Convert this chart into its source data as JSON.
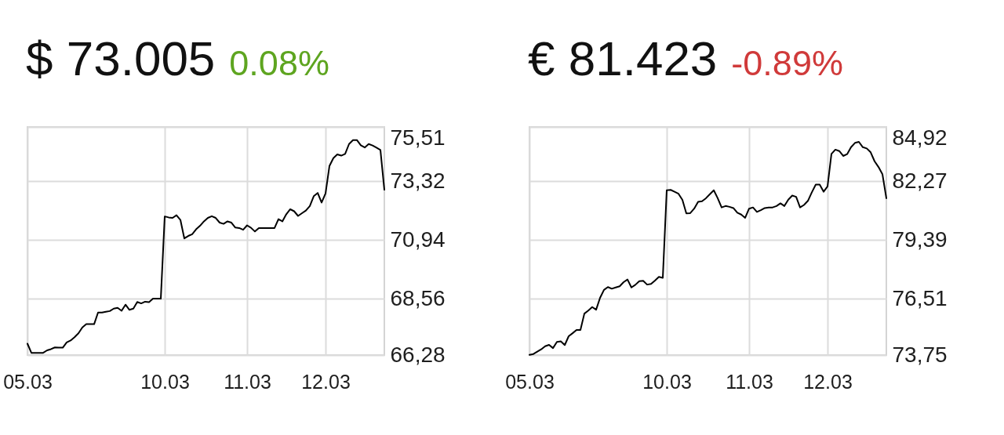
{
  "chart_data": [
    {
      "type": "line",
      "title": "$ 73.005",
      "subtitle": "0.08%",
      "categories": [
        "05.03",
        null,
        null,
        null,
        null,
        null,
        null,
        null,
        null,
        null,
        null,
        null,
        null,
        null,
        null,
        null,
        null,
        null,
        null,
        null,
        null,
        null,
        null,
        null,
        null,
        null,
        null,
        null,
        null,
        null,
        null,
        null,
        null,
        null,
        null,
        "10.03",
        null,
        null,
        null,
        null,
        null,
        null,
        null,
        null,
        null,
        null,
        null,
        null,
        null,
        null,
        null,
        null,
        null,
        null,
        null,
        null,
        "11.03",
        null,
        null,
        null,
        null,
        null,
        null,
        null,
        null,
        null,
        null,
        null,
        null,
        null,
        null,
        null,
        null,
        null,
        null,
        null,
        "12.03",
        null,
        null,
        null,
        null,
        null,
        null,
        null,
        null,
        null,
        null,
        null,
        null,
        null,
        null,
        null
      ],
      "ylim": [
        66.28,
        75.51
      ],
      "yticks": [
        {
          "value": 66.28,
          "label": "66,28"
        },
        {
          "value": 68.56,
          "label": "68,56"
        },
        {
          "value": 70.94,
          "label": "70,94"
        },
        {
          "value": 73.32,
          "label": "73,32"
        },
        {
          "value": 75.51,
          "label": "75,51"
        }
      ],
      "grid": true,
      "series": [
        {
          "color": "#000000",
          "values": [
            66.74,
            66.37,
            66.37,
            66.37,
            66.37,
            66.47,
            66.52,
            66.59,
            66.58,
            66.58,
            66.79,
            66.87,
            67.0,
            67.16,
            67.4,
            67.53,
            67.53,
            67.53,
            68.0,
            68.0,
            68.03,
            68.06,
            68.16,
            68.19,
            68.07,
            68.32,
            68.11,
            68.16,
            68.43,
            68.37,
            68.44,
            68.42,
            68.56,
            68.56,
            68.56,
            71.89,
            71.85,
            71.83,
            71.94,
            71.75,
            71.0,
            71.1,
            71.17,
            71.37,
            71.51,
            71.69,
            71.83,
            71.9,
            71.83,
            71.64,
            71.59,
            71.69,
            71.64,
            71.44,
            71.42,
            71.35,
            71.53,
            71.43,
            71.28,
            71.42,
            71.42,
            71.42,
            71.42,
            71.42,
            71.78,
            71.69,
            71.98,
            72.18,
            72.1,
            71.91,
            72.02,
            72.13,
            72.31,
            72.71,
            72.84,
            72.45,
            72.82,
            73.93,
            74.25,
            74.4,
            74.35,
            74.42,
            74.82,
            74.98,
            74.98,
            74.77,
            74.68,
            74.82,
            74.76,
            74.67,
            74.58,
            72.97
          ]
        }
      ]
    },
    {
      "type": "line",
      "title": "€ 81.423",
      "subtitle": "-0.89%",
      "categories": [
        "05.03",
        null,
        null,
        null,
        null,
        null,
        null,
        null,
        null,
        null,
        null,
        null,
        null,
        null,
        null,
        null,
        null,
        null,
        null,
        null,
        null,
        null,
        null,
        null,
        null,
        null,
        null,
        null,
        null,
        null,
        null,
        null,
        null,
        null,
        null,
        "10.03",
        null,
        null,
        null,
        null,
        null,
        null,
        null,
        null,
        null,
        null,
        null,
        null,
        null,
        null,
        null,
        null,
        null,
        null,
        null,
        null,
        "11.03",
        null,
        null,
        null,
        null,
        null,
        null,
        null,
        null,
        null,
        null,
        null,
        null,
        null,
        null,
        null,
        null,
        null,
        null,
        null,
        "12.03",
        null,
        null,
        null,
        null,
        null,
        null,
        null,
        null,
        null,
        null,
        null,
        null,
        null,
        null,
        null
      ],
      "ylim": [
        73.75,
        84.92
      ],
      "yticks": [
        {
          "value": 73.75,
          "label": "73,75"
        },
        {
          "value": 76.51,
          "label": "76,51"
        },
        {
          "value": 79.39,
          "label": "79,39"
        },
        {
          "value": 82.27,
          "label": "82,27"
        },
        {
          "value": 84.92,
          "label": "84,92"
        }
      ],
      "grid": true,
      "series": [
        {
          "color": "#000000",
          "values": [
            73.76,
            73.8,
            73.92,
            74.03,
            74.18,
            74.25,
            74.09,
            74.39,
            74.42,
            74.24,
            74.67,
            74.82,
            74.98,
            74.98,
            75.78,
            75.93,
            76.1,
            75.97,
            76.55,
            76.94,
            77.08,
            77.0,
            77.06,
            77.12,
            77.32,
            77.45,
            77.06,
            77.19,
            77.37,
            77.39,
            77.2,
            77.23,
            77.4,
            77.58,
            77.53,
            81.82,
            81.84,
            81.75,
            81.65,
            81.35,
            80.69,
            80.7,
            80.92,
            81.25,
            81.28,
            81.43,
            81.63,
            81.82,
            81.43,
            80.98,
            81.05,
            81.01,
            80.95,
            80.72,
            80.63,
            80.47,
            80.92,
            80.98,
            80.76,
            80.85,
            80.95,
            80.98,
            80.98,
            81.05,
            81.18,
            81.05,
            81.36,
            81.56,
            81.5,
            80.98,
            81.1,
            81.3,
            81.72,
            82.1,
            82.1,
            81.75,
            82.01,
            83.6,
            83.81,
            83.74,
            83.5,
            83.59,
            83.93,
            84.14,
            84.19,
            83.93,
            83.87,
            83.68,
            83.24,
            82.96,
            82.61,
            81.43
          ]
        }
      ]
    }
  ]
}
